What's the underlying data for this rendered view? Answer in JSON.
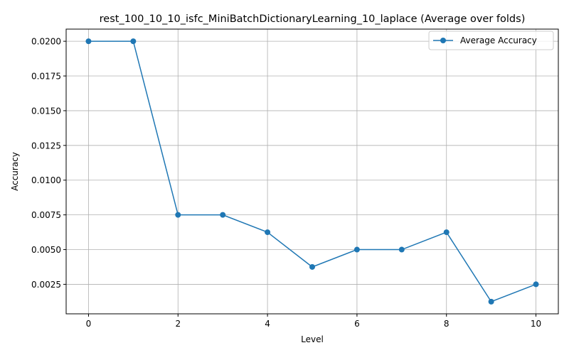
{
  "chart_data": {
    "type": "line",
    "title": "rest_100_10_10_isfc_MiniBatchDictionaryLearning_10_laplace (Average over folds)",
    "xlabel": "Level",
    "ylabel": "Accuracy",
    "x": [
      0,
      1,
      2,
      3,
      4,
      5,
      6,
      7,
      8,
      9,
      10
    ],
    "series": [
      {
        "name": "Average Accuracy",
        "color": "#1f77b4",
        "marker": "circle",
        "values": [
          0.02,
          0.02,
          0.0075,
          0.0075,
          0.00625,
          0.00375,
          0.005,
          0.005,
          0.00625,
          0.00125,
          0.0025
        ]
      }
    ],
    "xlim": [
      -0.5,
      10.5
    ],
    "ylim": [
      0.000375,
      0.020875
    ],
    "xticks": [
      0,
      2,
      4,
      6,
      8,
      10
    ],
    "xtick_labels": [
      "0",
      "2",
      "4",
      "6",
      "8",
      "10"
    ],
    "yticks": [
      0.0025,
      0.005,
      0.0075,
      0.01,
      0.0125,
      0.015,
      0.0175,
      0.02
    ],
    "ytick_labels": [
      "0.0025",
      "0.0050",
      "0.0075",
      "0.0100",
      "0.0125",
      "0.0150",
      "0.0175",
      "0.0200"
    ],
    "grid": true,
    "legend_position": "top-right"
  }
}
